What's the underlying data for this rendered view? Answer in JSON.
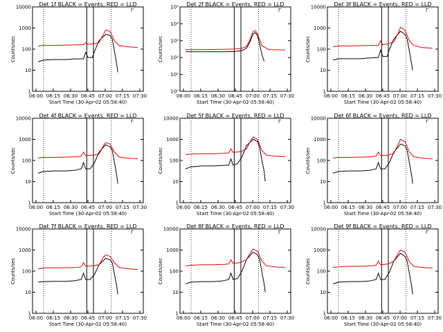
{
  "chart_data": [
    {
      "type": "line",
      "title": "Det 1f BLACK = Events, RED = LLD",
      "xlabel": "Start Time (30-Apr-02 05:58:40)",
      "ylabel": "Counts/sec",
      "ylim": [
        1,
        10000
      ],
      "yticks": [
        "1",
        "10",
        "100",
        "1000",
        "10000"
      ],
      "xticks": [
        "06:00",
        "06:15",
        "06:30",
        "06:45",
        "07:00",
        "07:15",
        "07:30"
      ],
      "xlim": [
        0,
        100
      ],
      "log": true,
      "series": [
        {
          "name": "BLACK = Events",
          "color": "#000000",
          "x": [
            5,
            10,
            20,
            30,
            38,
            46,
            48,
            50,
            54,
            56,
            60,
            66,
            70,
            72,
            74,
            76,
            77
          ],
          "y": [
            25,
            30,
            32,
            32,
            34,
            35,
            70,
            40,
            40,
            80,
            250,
            500,
            450,
            300,
            80,
            20,
            8
          ]
        },
        {
          "name": "RED = LLD",
          "color": "#e00000",
          "x": [
            5,
            10,
            20,
            30,
            40,
            46,
            48,
            50,
            55,
            60,
            64,
            66,
            70,
            74,
            78,
            85,
            95
          ],
          "y": [
            140,
            150,
            150,
            155,
            160,
            160,
            200,
            170,
            180,
            200,
            500,
            800,
            700,
            250,
            150,
            130,
            120
          ]
        }
      ]
    },
    {
      "type": "line",
      "title": "Det 2f BLACK = Events, RED = LLD",
      "xlabel": "Start Time (30-Apr-02 05:58:40)",
      "ylabel": "Counts/sec",
      "ylim": [
        1,
        100000
      ],
      "yticks": [
        "10⁰",
        "10¹",
        "10²",
        "10³",
        "10⁴",
        "10⁵"
      ],
      "xticks": [
        "06:00",
        "06:15",
        "06:30",
        "06:45",
        "07:00",
        "07:15",
        "07:30"
      ],
      "xlim": [
        0,
        100
      ],
      "log": true,
      "series": [
        {
          "name": "BLACK = Events",
          "color": "#000000",
          "x": [
            5,
            20,
            40,
            50,
            56,
            60,
            63,
            66,
            68,
            70,
            72,
            74,
            76
          ],
          "y": [
            220,
            220,
            220,
            230,
            260,
            350,
            800,
            2500,
            3000,
            2000,
            600,
            150,
            60
          ]
        },
        {
          "name": "RED = LLD",
          "color": "#e00000",
          "x": [
            5,
            20,
            40,
            50,
            56,
            60,
            63,
            66,
            68,
            70,
            74,
            80,
            95
          ],
          "y": [
            300,
            300,
            310,
            320,
            350,
            450,
            1000,
            3500,
            4000,
            2500,
            500,
            300,
            280
          ]
        }
      ]
    },
    {
      "type": "line",
      "title": "Det 3f BLACK = Events, RED = LLD",
      "xlabel": "Start Time (30-Apr-02 05:58:40)",
      "ylabel": "Counts/sec",
      "ylim": [
        1,
        10000
      ],
      "yticks": [
        "1",
        "10",
        "100",
        "1000",
        "10000"
      ],
      "xticks": [
        "06:00",
        "06:15",
        "06:30",
        "06:45",
        "07:00",
        "07:15",
        "07:30"
      ],
      "xlim": [
        0,
        100
      ],
      "log": true,
      "series": [
        {
          "name": "BLACK = Events",
          "color": "#000000",
          "x": [
            5,
            10,
            20,
            30,
            38,
            46,
            48,
            50,
            54,
            56,
            60,
            66,
            70,
            72,
            74,
            76,
            77
          ],
          "y": [
            30,
            35,
            35,
            35,
            38,
            40,
            90,
            45,
            45,
            100,
            300,
            700,
            500,
            300,
            80,
            20,
            10
          ]
        },
        {
          "name": "RED = LLD",
          "color": "#e00000",
          "x": [
            5,
            10,
            20,
            30,
            40,
            46,
            48,
            50,
            55,
            60,
            64,
            66,
            70,
            74,
            78,
            85,
            95
          ],
          "y": [
            130,
            140,
            140,
            145,
            150,
            150,
            250,
            160,
            180,
            220,
            600,
            1100,
            800,
            250,
            150,
            120,
            110
          ]
        }
      ]
    },
    {
      "type": "line",
      "title": "Det 4f BLACK = Events, RED = LLD",
      "xlabel": "Start Time (30-Apr-02 05:58:40)",
      "ylabel": "Counts/sec",
      "ylim": [
        1,
        10000
      ],
      "yticks": [
        "1",
        "10",
        "100",
        "1000",
        "10000"
      ],
      "xticks": [
        "06:00",
        "06:15",
        "06:30",
        "06:45",
        "07:00",
        "07:15",
        "07:30"
      ],
      "xlim": [
        0,
        100
      ],
      "log": true,
      "series": [
        {
          "name": "BLACK = Events",
          "color": "#000000",
          "x": [
            5,
            10,
            20,
            30,
            38,
            44,
            46,
            48,
            52,
            56,
            60,
            66,
            70,
            72,
            74,
            76,
            77
          ],
          "y": [
            25,
            30,
            32,
            32,
            34,
            40,
            80,
            40,
            40,
            80,
            250,
            550,
            450,
            300,
            80,
            20,
            8
          ]
        },
        {
          "name": "RED = LLD",
          "color": "#e00000",
          "x": [
            5,
            10,
            20,
            30,
            40,
            44,
            46,
            48,
            55,
            60,
            64,
            66,
            70,
            74,
            78,
            85,
            95
          ],
          "y": [
            130,
            140,
            140,
            145,
            150,
            160,
            250,
            170,
            180,
            200,
            500,
            700,
            600,
            250,
            150,
            130,
            120
          ]
        }
      ]
    },
    {
      "type": "line",
      "title": "Det 5f BLACK = Events, RED = LLD",
      "xlabel": "Start Time (30-Apr-02 05:58:40)",
      "ylabel": "Counts/sec",
      "ylim": [
        1,
        10000
      ],
      "yticks": [
        "1",
        "10",
        "100",
        "1000",
        "10000"
      ],
      "xticks": [
        "06:00",
        "06:15",
        "06:30",
        "06:45",
        "07:00",
        "07:15",
        "07:30"
      ],
      "xlim": [
        0,
        100
      ],
      "log": true,
      "series": [
        {
          "name": "BLACK = Events",
          "color": "#000000",
          "x": [
            5,
            10,
            20,
            30,
            38,
            44,
            46,
            48,
            52,
            56,
            60,
            66,
            70,
            72,
            74,
            76,
            77
          ],
          "y": [
            40,
            50,
            55,
            55,
            58,
            60,
            120,
            60,
            70,
            150,
            500,
            1000,
            800,
            400,
            100,
            30,
            10
          ]
        },
        {
          "name": "RED = LLD",
          "color": "#e00000",
          "x": [
            5,
            10,
            20,
            30,
            40,
            44,
            46,
            48,
            55,
            60,
            64,
            66,
            70,
            74,
            78,
            85,
            95
          ],
          "y": [
            190,
            200,
            210,
            210,
            220,
            230,
            350,
            240,
            260,
            350,
            900,
            1300,
            1000,
            300,
            180,
            160,
            150
          ]
        }
      ]
    },
    {
      "type": "line",
      "title": "Det 6f BLACK = Events, RED = LLD",
      "xlabel": "Start Time (30-Apr-02 05:58:40)",
      "ylabel": "Counts/sec",
      "ylim": [
        1,
        10000
      ],
      "yticks": [
        "1",
        "10",
        "100",
        "1000",
        "10000"
      ],
      "xticks": [
        "06:00",
        "06:15",
        "06:30",
        "06:45",
        "07:00",
        "07:15",
        "07:30"
      ],
      "xlim": [
        0,
        100
      ],
      "log": true,
      "series": [
        {
          "name": "BLACK = Events",
          "color": "#000000",
          "x": [
            5,
            10,
            20,
            30,
            38,
            44,
            46,
            48,
            52,
            56,
            60,
            66,
            70,
            72,
            74,
            76,
            77
          ],
          "y": [
            25,
            30,
            32,
            32,
            34,
            40,
            80,
            40,
            40,
            80,
            250,
            600,
            500,
            300,
            80,
            20,
            8
          ]
        },
        {
          "name": "RED = LLD",
          "color": "#e00000",
          "x": [
            5,
            10,
            20,
            30,
            40,
            44,
            46,
            48,
            55,
            60,
            64,
            66,
            70,
            74,
            78,
            85,
            95
          ],
          "y": [
            130,
            140,
            140,
            145,
            150,
            160,
            250,
            170,
            180,
            220,
            600,
            1000,
            800,
            250,
            150,
            130,
            120
          ]
        }
      ]
    },
    {
      "type": "line",
      "title": "Det 7f BLACK = Events, RED = LLD",
      "xlabel": "Start Time (30-Apr-02 05:58:40)",
      "ylabel": "Counts/sec",
      "ylim": [
        1,
        10000
      ],
      "yticks": [
        "1",
        "10",
        "100",
        "1000",
        "10000"
      ],
      "xticks": [
        "06:00",
        "06:15",
        "06:30",
        "06:45",
        "07:00",
        "07:15",
        "07:30"
      ],
      "xlim": [
        0,
        100
      ],
      "log": true,
      "series": [
        {
          "name": "BLACK = Events",
          "color": "#000000",
          "x": [
            5,
            10,
            20,
            30,
            38,
            44,
            46,
            48,
            52,
            56,
            60,
            66,
            70,
            72,
            74,
            76,
            77
          ],
          "y": [
            30,
            32,
            33,
            33,
            35,
            40,
            80,
            40,
            40,
            70,
            200,
            400,
            350,
            250,
            70,
            20,
            8
          ]
        },
        {
          "name": "RED = LLD",
          "color": "#e00000",
          "x": [
            5,
            10,
            20,
            30,
            40,
            44,
            46,
            48,
            55,
            60,
            64,
            66,
            70,
            74,
            78,
            85,
            95
          ],
          "y": [
            130,
            140,
            145,
            145,
            150,
            160,
            250,
            170,
            180,
            200,
            450,
            600,
            500,
            250,
            150,
            130,
            120
          ]
        }
      ]
    },
    {
      "type": "line",
      "title": "Det 8f BLACK = Events, RED = LLD",
      "xlabel": "Start Time (30-Apr-02 05:58:40)",
      "ylabel": "Counts/sec",
      "ylim": [
        1,
        10000
      ],
      "yticks": [
        "1",
        "10",
        "100",
        "1000",
        "10000"
      ],
      "xticks": [
        "06:00",
        "06:15",
        "06:30",
        "06:45",
        "07:00",
        "07:15",
        "07:30"
      ],
      "xlim": [
        0,
        100
      ],
      "log": true,
      "series": [
        {
          "name": "BLACK = Events",
          "color": "#000000",
          "x": [
            5,
            10,
            20,
            30,
            38,
            44,
            46,
            48,
            52,
            56,
            60,
            66,
            70,
            72,
            74,
            76,
            77
          ],
          "y": [
            25,
            30,
            32,
            32,
            34,
            40,
            80,
            40,
            45,
            100,
            350,
            800,
            600,
            350,
            90,
            25,
            10
          ]
        },
        {
          "name": "RED = LLD",
          "color": "#e00000",
          "x": [
            5,
            10,
            20,
            30,
            40,
            44,
            46,
            48,
            55,
            60,
            64,
            66,
            70,
            74,
            78,
            85,
            95
          ],
          "y": [
            180,
            190,
            200,
            200,
            210,
            220,
            350,
            230,
            260,
            350,
            800,
            1100,
            900,
            300,
            180,
            160,
            150
          ]
        }
      ]
    },
    {
      "type": "line",
      "title": "Det 9f BLACK = Events, RED = LLD",
      "xlabel": "Start Time (30-Apr-02 05:58:40)",
      "ylabel": "Counts/sec",
      "ylim": [
        1,
        10000
      ],
      "yticks": [
        "1",
        "10",
        "100",
        "1000",
        "10000"
      ],
      "xticks": [
        "06:00",
        "06:15",
        "06:30",
        "06:45",
        "07:00",
        "07:15",
        "07:30"
      ],
      "xlim": [
        0,
        100
      ],
      "log": true,
      "series": [
        {
          "name": "BLACK = Events",
          "color": "#000000",
          "x": [
            5,
            10,
            20,
            30,
            38,
            44,
            46,
            48,
            52,
            56,
            60,
            66,
            70,
            72,
            74,
            76,
            77
          ],
          "y": [
            25,
            30,
            32,
            32,
            34,
            40,
            80,
            40,
            40,
            90,
            300,
            700,
            500,
            300,
            80,
            20,
            8
          ]
        },
        {
          "name": "RED = LLD",
          "color": "#e00000",
          "x": [
            5,
            10,
            20,
            30,
            40,
            44,
            46,
            48,
            55,
            60,
            64,
            66,
            70,
            74,
            78,
            85,
            95
          ],
          "y": [
            150,
            160,
            170,
            170,
            180,
            190,
            300,
            200,
            220,
            300,
            700,
            1000,
            800,
            280,
            170,
            150,
            140
          ]
        }
      ]
    }
  ],
  "markers": {
    "dotted_x": [
      10,
      71
    ],
    "solid_x": [
      49,
      55
    ],
    "dotted_x_alt": [
      49,
      55
    ]
  },
  "corner_symbol": "Γ"
}
